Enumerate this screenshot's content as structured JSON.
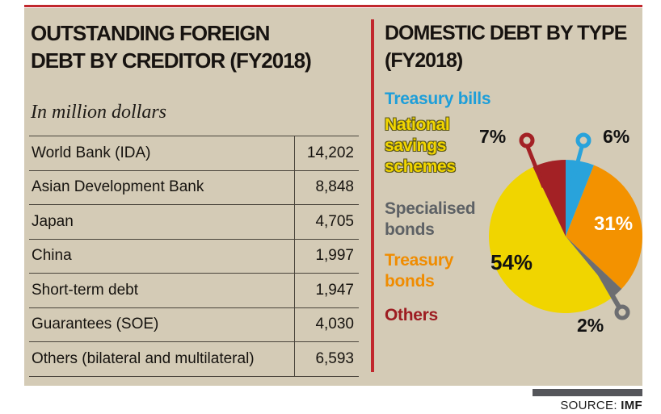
{
  "left_panel": {
    "title_lines": [
      "OUTSTANDING FOREIGN",
      "DEBT BY CREDITOR (FY2018)"
    ],
    "subtitle": "In million dollars",
    "rows": [
      {
        "label": "World Bank (IDA)",
        "value": "14,202"
      },
      {
        "label": "Asian Development Bank",
        "value": "8,848"
      },
      {
        "label": "Japan",
        "value": "4,705"
      },
      {
        "label": "China",
        "value": "1,997"
      },
      {
        "label": "Short-term debt",
        "value": "1,947"
      },
      {
        "label": "Guarantees (SOE)",
        "value": "4,030"
      },
      {
        "label": "Others (bilateral and multilateral)",
        "value": "6,593"
      }
    ]
  },
  "right_panel": {
    "title_lines": [
      "DOMESTIC DEBT BY TYPE",
      "(FY2018)"
    ],
    "legend": [
      {
        "lines": [
          "Treasury bills"
        ],
        "color": "#1d9ed9"
      },
      {
        "lines": [
          "National",
          "savings",
          "schemes"
        ],
        "color": "#f2d600",
        "outlined": true
      },
      {
        "lines": [
          "Specialised",
          "bonds"
        ],
        "color": "#5d6165"
      },
      {
        "lines": [
          "Treasury",
          "bonds"
        ],
        "color": "#f08c00"
      },
      {
        "lines": [
          "Others"
        ],
        "color": "#9d1c21"
      }
    ]
  },
  "source": {
    "label": "SOURCE:",
    "value": "IMF"
  },
  "accent_colors": {
    "rule_red": "#c1272d",
    "panel_tan": "#d4cbb6",
    "source_bar_gray": "#55565b"
  },
  "chart_data": {
    "type": "pie",
    "title": "DOMESTIC DEBT BY TYPE (FY2018)",
    "unit": "percent",
    "direction": "clockwise",
    "start_angle_deg": 0,
    "legend_position": "left",
    "slices": [
      {
        "category": "Treasury bills",
        "value": 6,
        "display": "6%",
        "color": "#29a3db"
      },
      {
        "category": "Treasury bonds",
        "value": 31,
        "display": "31%",
        "color": "#f39200"
      },
      {
        "category": "Specialised bonds",
        "value": 2,
        "display": "2%",
        "color": "#6d6e71"
      },
      {
        "category": "National savings schemes",
        "value": 54,
        "display": "54%",
        "color": "#f0d500"
      },
      {
        "category": "Others",
        "value": 7,
        "display": "7%",
        "color": "#a32125"
      }
    ]
  }
}
